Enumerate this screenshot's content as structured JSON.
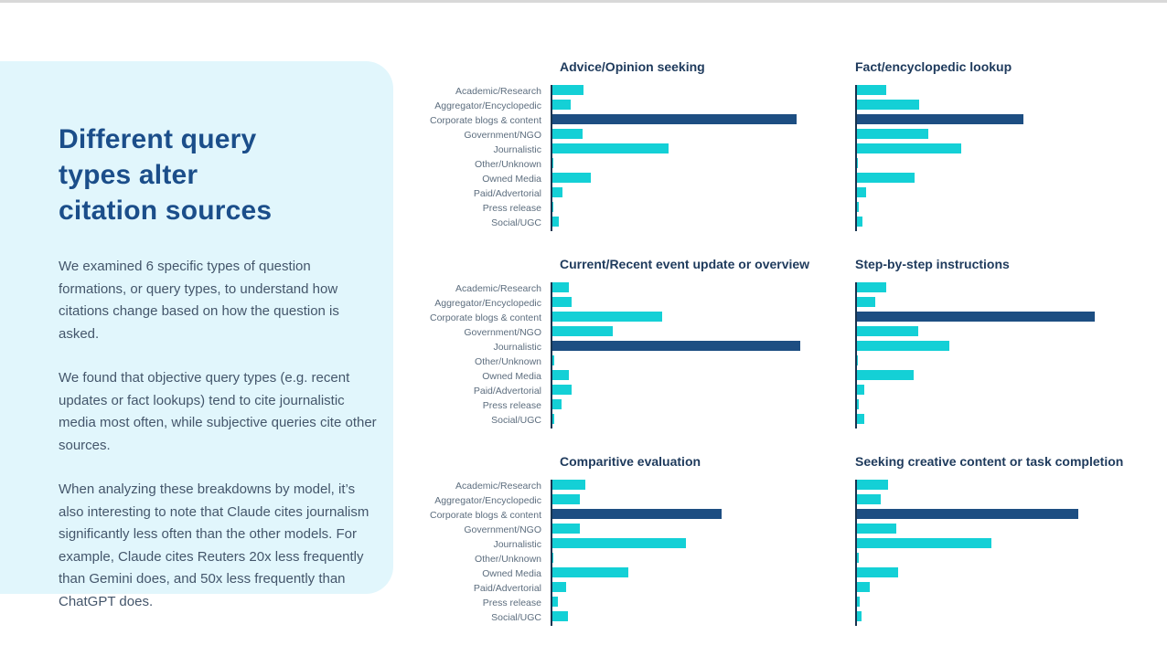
{
  "page": {
    "top_line_note": "thin light gray rule across very top of page"
  },
  "panel": {
    "heading_lines": [
      "Different query",
      "types alter",
      "citation sources"
    ],
    "paragraphs": [
      "We examined 6 specific types of question formations, or query types, to understand how citations change based on how the question is asked.",
      "We found that objective query types (e.g. recent updates or fact lookups) tend to cite journalistic media most often, while subjective queries cite other sources.",
      "When analyzing these breakdowns by model, it’s also interesting to note that Claude cites journalism significantly less often than the other models. For example, Claude cites Reuters 20x less frequently than Gemini does, and 50x less frequently than ChatGPT does."
    ]
  },
  "colors": {
    "bar_cyan": "#14d0d6",
    "bar_navy": "#1d4e82",
    "chart_title": "#1e3a5c",
    "category_label": "#5c6d7e",
    "heading_blue": "#1b4e8a",
    "body_text": "#44566b",
    "panel_bg": "#e1f6fc",
    "axis_line": "#17334f",
    "top_line": "#d8d8d8"
  },
  "chart_data": {
    "type": "bar",
    "orientation": "horizontal",
    "unit": "relative bar length as % of plot width (no numeric axis labels shown in image)",
    "grid": false,
    "legend": false,
    "categories": [
      "Academic/Research",
      "Aggregator/Encyclopedic",
      "Corporate blogs & content",
      "Government/NGO",
      "Journalistic",
      "Other/Unknown",
      "Owned Media",
      "Paid/Advertorial",
      "Press release",
      "Social/UGC"
    ],
    "bar_color": "#14d0d6",
    "highlight_color": "#1d4e82",
    "charts": [
      {
        "title": "Advice/Opinion seeking",
        "show_labels": true,
        "highlight_category": "Corporate blogs & content",
        "values": [
          11.5,
          6.8,
          89.5,
          11.2,
          42.5,
          0.4,
          14.0,
          3.8,
          0.5,
          2.5
        ]
      },
      {
        "title": "Fact/encyclopedic lookup",
        "show_labels": false,
        "highlight_category": "Corporate blogs & content",
        "values": [
          10.7,
          22.8,
          61.1,
          26.3,
          38.1,
          0.3,
          21.1,
          3.3,
          0.7,
          1.9
        ]
      },
      {
        "title": "Current/Recent event update or overview",
        "show_labels": true,
        "highlight_category": "Journalistic",
        "values": [
          6.2,
          7.1,
          40.2,
          22.1,
          91.1,
          0.7,
          6.2,
          7.1,
          3.4,
          0.7
        ]
      },
      {
        "title": "Step-by-step instructions",
        "show_labels": false,
        "highlight_category": "Corporate blogs & content",
        "values": [
          10.7,
          6.7,
          87.3,
          22.4,
          33.8,
          0.3,
          20.8,
          2.8,
          0.6,
          2.8
        ]
      },
      {
        "title": "Comparitive evaluation",
        "show_labels": true,
        "highlight_category": "Corporate blogs & content",
        "values": [
          12.2,
          10.2,
          62.0,
          10.0,
          49.1,
          0.4,
          28.0,
          5.1,
          2.0,
          5.6
        ]
      },
      {
        "title": "Seeking creative content or task completion",
        "show_labels": false,
        "highlight_category": "Corporate blogs & content",
        "values": [
          11.4,
          8.7,
          81.3,
          14.3,
          49.2,
          0.6,
          15.1,
          4.6,
          0.9,
          1.7
        ]
      }
    ]
  }
}
